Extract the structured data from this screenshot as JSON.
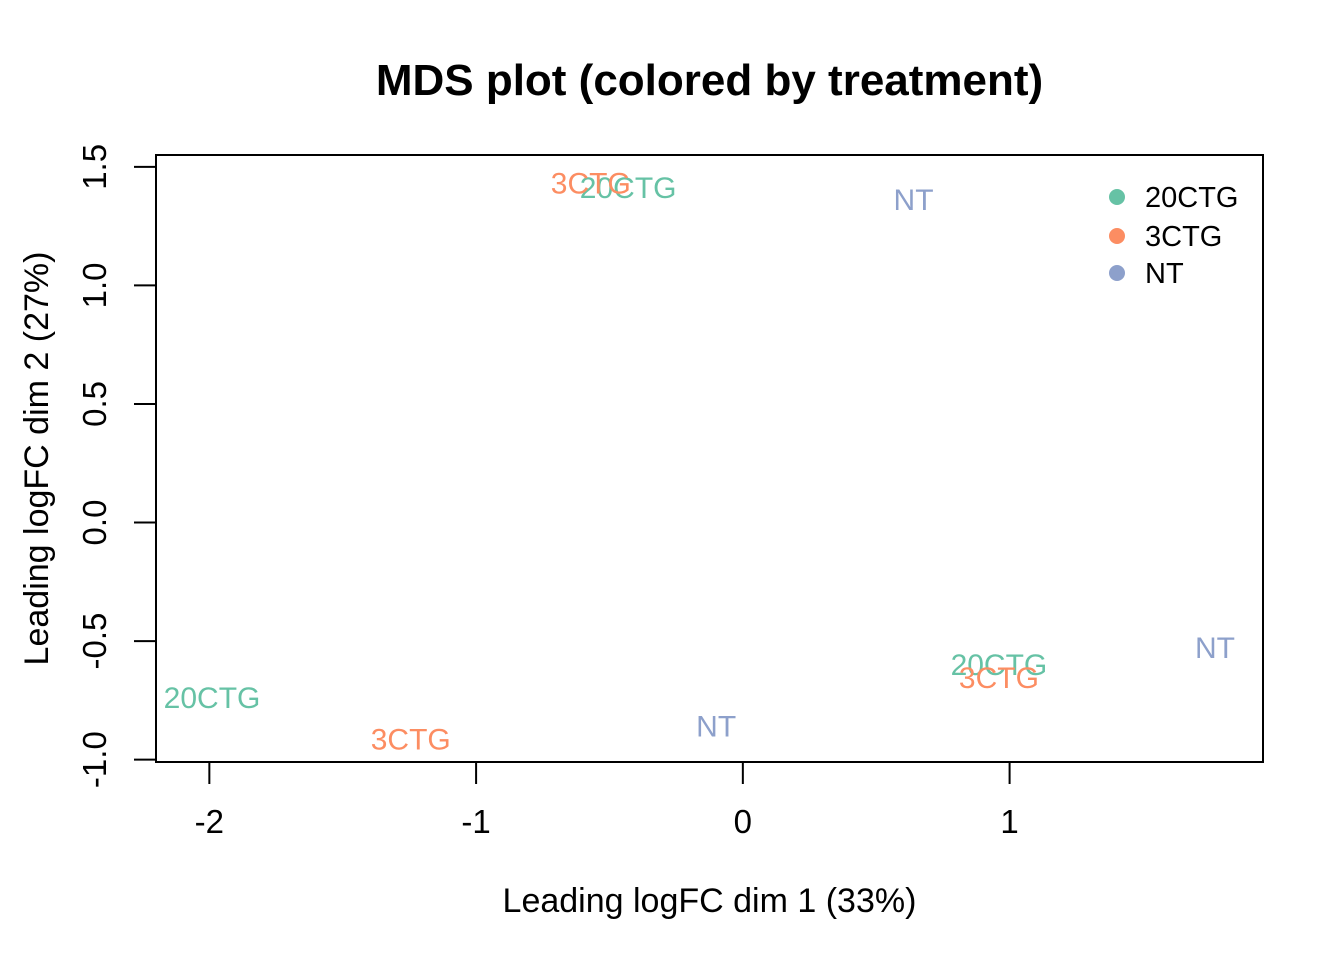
{
  "figure": {
    "background": "#ffffff",
    "axis_color": "#000000",
    "text_color": "#000000"
  },
  "chart_data": {
    "type": "scatter",
    "title": "MDS plot (colored by treatment)",
    "xlabel": "Leading logFC dim 1 (33%)",
    "ylabel": "Leading logFC dim 2 (27%)",
    "xlim": [
      -2.2,
      1.95
    ],
    "ylim": [
      -1.01,
      1.55
    ],
    "grid": false,
    "point_style": "text-labels",
    "x_ticks": [
      {
        "value": -2,
        "label": "-2"
      },
      {
        "value": -1,
        "label": "-1"
      },
      {
        "value": 0,
        "label": "0"
      },
      {
        "value": 1,
        "label": "1"
      }
    ],
    "y_ticks": [
      {
        "value": -1.0,
        "label": "-1.0"
      },
      {
        "value": -0.5,
        "label": "-0.5"
      },
      {
        "value": 0.0,
        "label": "0.0"
      },
      {
        "value": 0.5,
        "label": "0.5"
      },
      {
        "value": 1.0,
        "label": "1.0"
      },
      {
        "value": 1.5,
        "label": "1.5"
      }
    ],
    "groups": [
      {
        "name": "20CTG",
        "color": "#66C2A5"
      },
      {
        "name": "3CTG",
        "color": "#FC8D62"
      },
      {
        "name": "NT",
        "color": "#8DA0CB"
      }
    ],
    "points": [
      {
        "group": "20CTG",
        "label": "20CTG",
        "x": -0.43,
        "y": 1.41
      },
      {
        "group": "20CTG",
        "label": "20CTG",
        "x": 0.96,
        "y": -0.6
      },
      {
        "group": "20CTG",
        "label": "20CTG",
        "x": -1.99,
        "y": -0.74
      },
      {
        "group": "3CTG",
        "label": "3CTG",
        "x": -0.57,
        "y": 1.43
      },
      {
        "group": "3CTG",
        "label": "3CTG",
        "x": 0.96,
        "y": -0.655
      },
      {
        "group": "3CTG",
        "label": "3CTG",
        "x": -1.245,
        "y": -0.915
      },
      {
        "group": "NT",
        "label": "NT",
        "x": 0.64,
        "y": 1.36
      },
      {
        "group": "NT",
        "label": "NT",
        "x": 1.77,
        "y": -0.53
      },
      {
        "group": "NT",
        "label": "NT",
        "x": -0.1,
        "y": -0.86
      }
    ],
    "legend": {
      "position": "top-right",
      "border": false,
      "entries": [
        {
          "label": "20CTG",
          "color": "#66C2A5"
        },
        {
          "label": "3CTG",
          "color": "#FC8D62"
        },
        {
          "label": "NT",
          "color": "#8DA0CB"
        }
      ]
    }
  }
}
